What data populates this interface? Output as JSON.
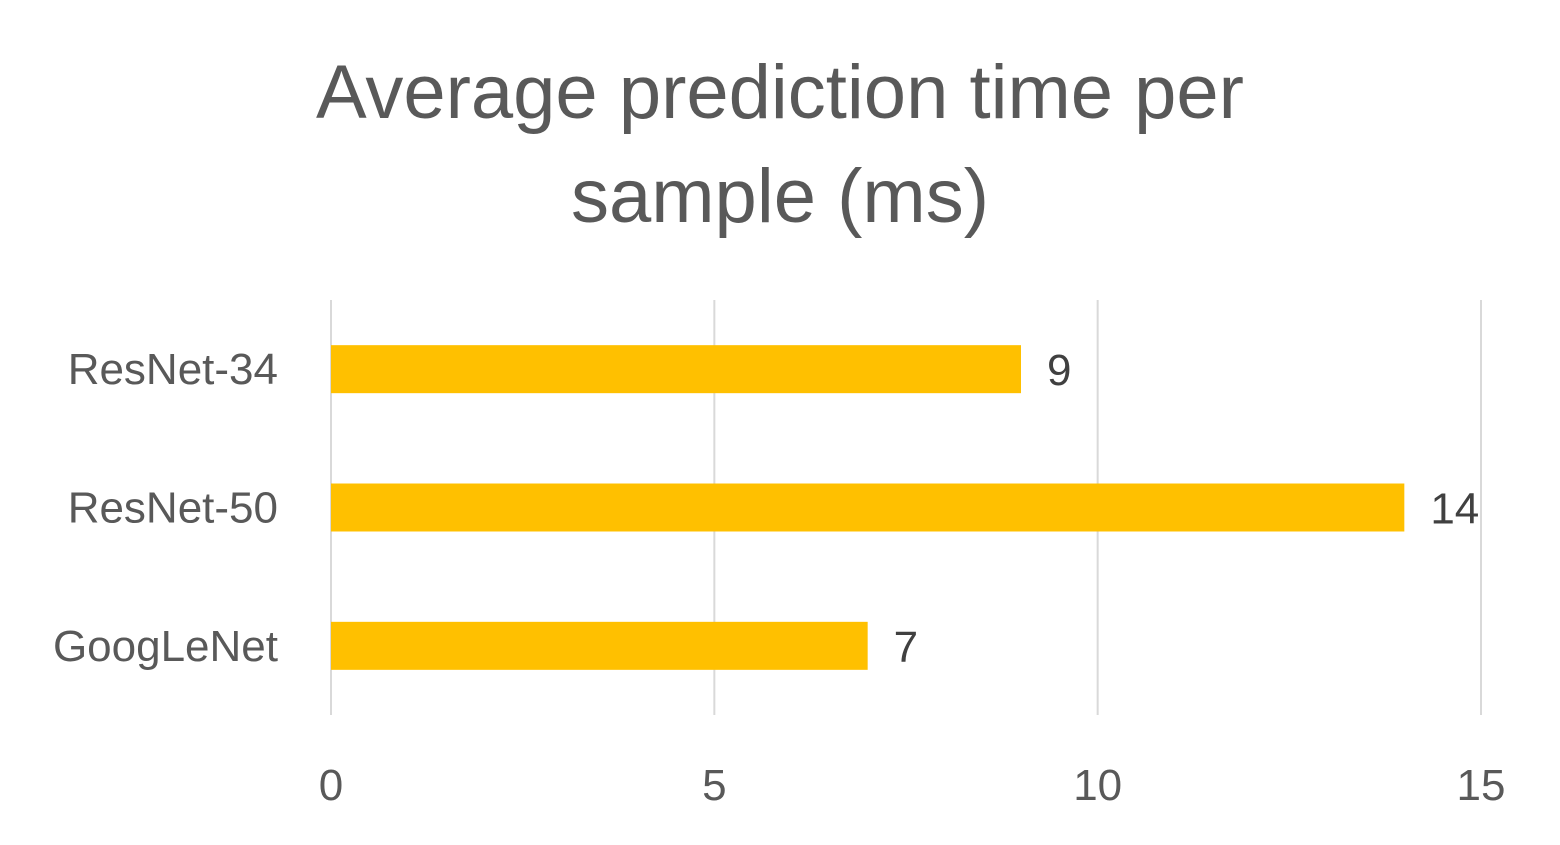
{
  "chart_data": {
    "type": "bar",
    "orientation": "horizontal",
    "title_lines": [
      "Average prediction time per",
      "sample (ms)"
    ],
    "categories": [
      "ResNet-34",
      "ResNet-50",
      "GoogLeNet"
    ],
    "values": [
      9,
      14,
      7
    ],
    "data_labels": [
      "9",
      "14",
      "7"
    ],
    "x_ticks": [
      0,
      5,
      10,
      15
    ],
    "x_tick_labels": [
      "0",
      "5",
      "10",
      "15"
    ],
    "xlim": [
      0,
      15
    ],
    "grid": true,
    "legend": "none",
    "bar_color": "#FFC000",
    "grid_color": "#D9D9D9",
    "text_color": "#595959",
    "data_label_color": "#404040"
  }
}
